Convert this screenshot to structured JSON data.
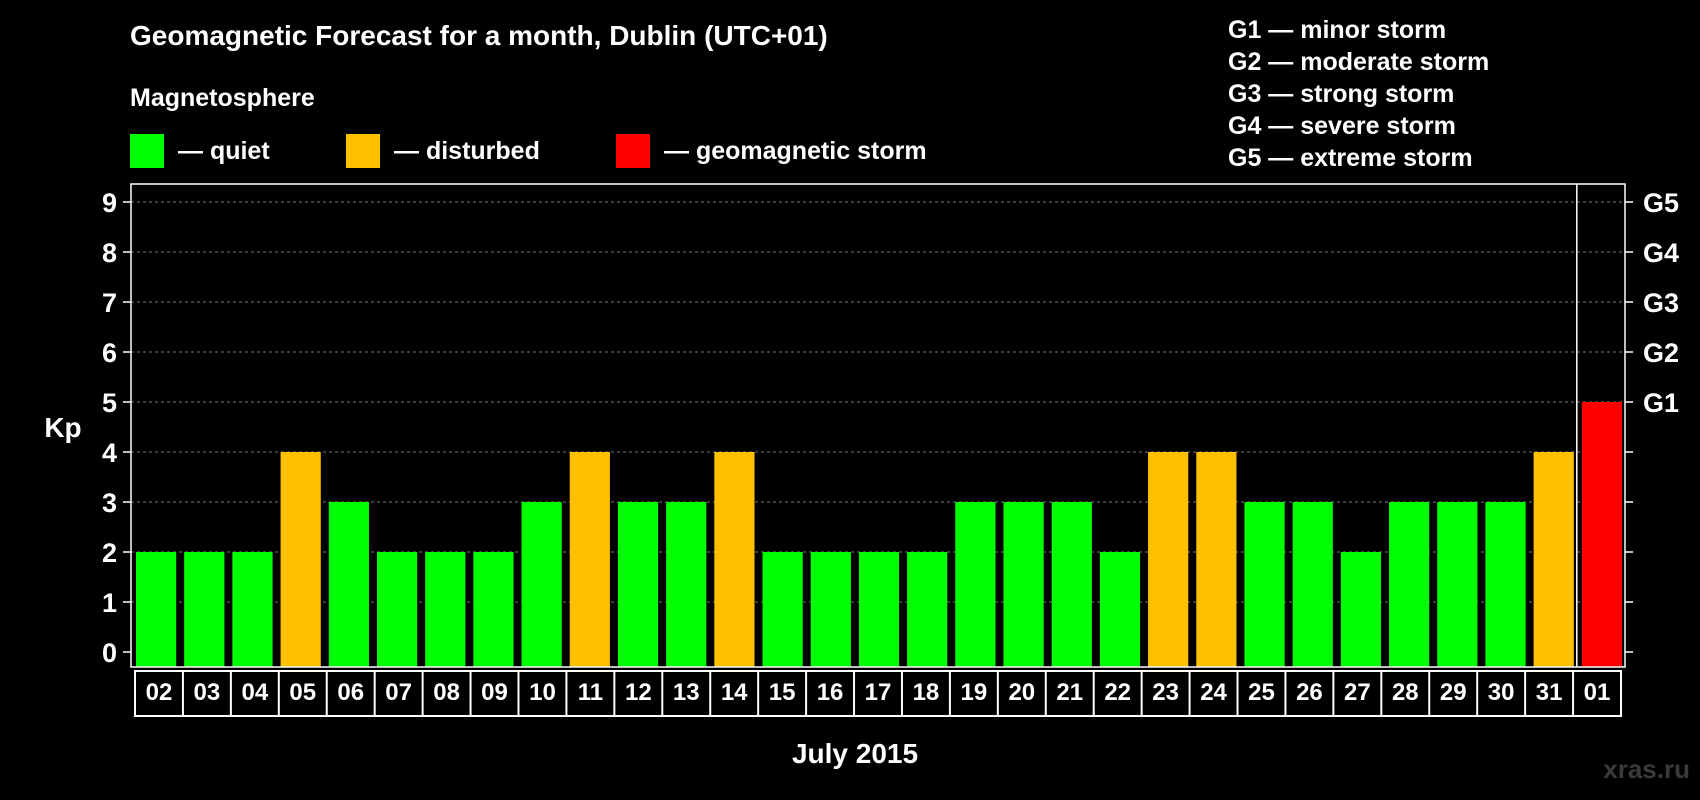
{
  "header": {
    "title": "Geomagnetic Forecast for a month, Dublin (UTC+01)",
    "subtitle": "Magnetosphere"
  },
  "legend": [
    {
      "label": "— quiet",
      "color": "#00ff00"
    },
    {
      "label": "— disturbed",
      "color": "#ffc000"
    },
    {
      "label": "— geomagnetic storm",
      "color": "#ff0000"
    }
  ],
  "g_legend": [
    "G1 — minor storm",
    "G2 — moderate storm",
    "G3 — strong storm",
    "G4 — severe storm",
    "G5 — extreme storm"
  ],
  "watermark": "xras.ru",
  "chart_data": {
    "type": "bar",
    "title": "Geomagnetic Forecast for a month, Dublin (UTC+01)",
    "xlabel": "July 2015",
    "ylabel": "Kp",
    "ylim": [
      0,
      9
    ],
    "yticks": [
      "0",
      "1",
      "2",
      "3",
      "4",
      "5",
      "6",
      "7",
      "8",
      "9"
    ],
    "right_labels": [
      {
        "value": 5,
        "label": "G1"
      },
      {
        "value": 6,
        "label": "G2"
      },
      {
        "value": 7,
        "label": "G3"
      },
      {
        "value": 8,
        "label": "G4"
      },
      {
        "value": 9,
        "label": "G5"
      }
    ],
    "categories": [
      "02",
      "03",
      "04",
      "05",
      "06",
      "07",
      "08",
      "09",
      "10",
      "11",
      "12",
      "13",
      "14",
      "15",
      "16",
      "17",
      "18",
      "19",
      "20",
      "21",
      "22",
      "23",
      "24",
      "25",
      "26",
      "27",
      "28",
      "29",
      "30",
      "31",
      "01"
    ],
    "values": [
      2,
      2,
      2,
      4,
      3,
      2,
      2,
      2,
      3,
      4,
      3,
      3,
      4,
      2,
      2,
      2,
      2,
      3,
      3,
      3,
      2,
      4,
      4,
      3,
      3,
      2,
      3,
      3,
      3,
      4,
      5
    ],
    "colors": {
      "quiet": "#00ff00",
      "disturbed": "#ffc000",
      "storm": "#ff0000"
    },
    "grid": true
  }
}
